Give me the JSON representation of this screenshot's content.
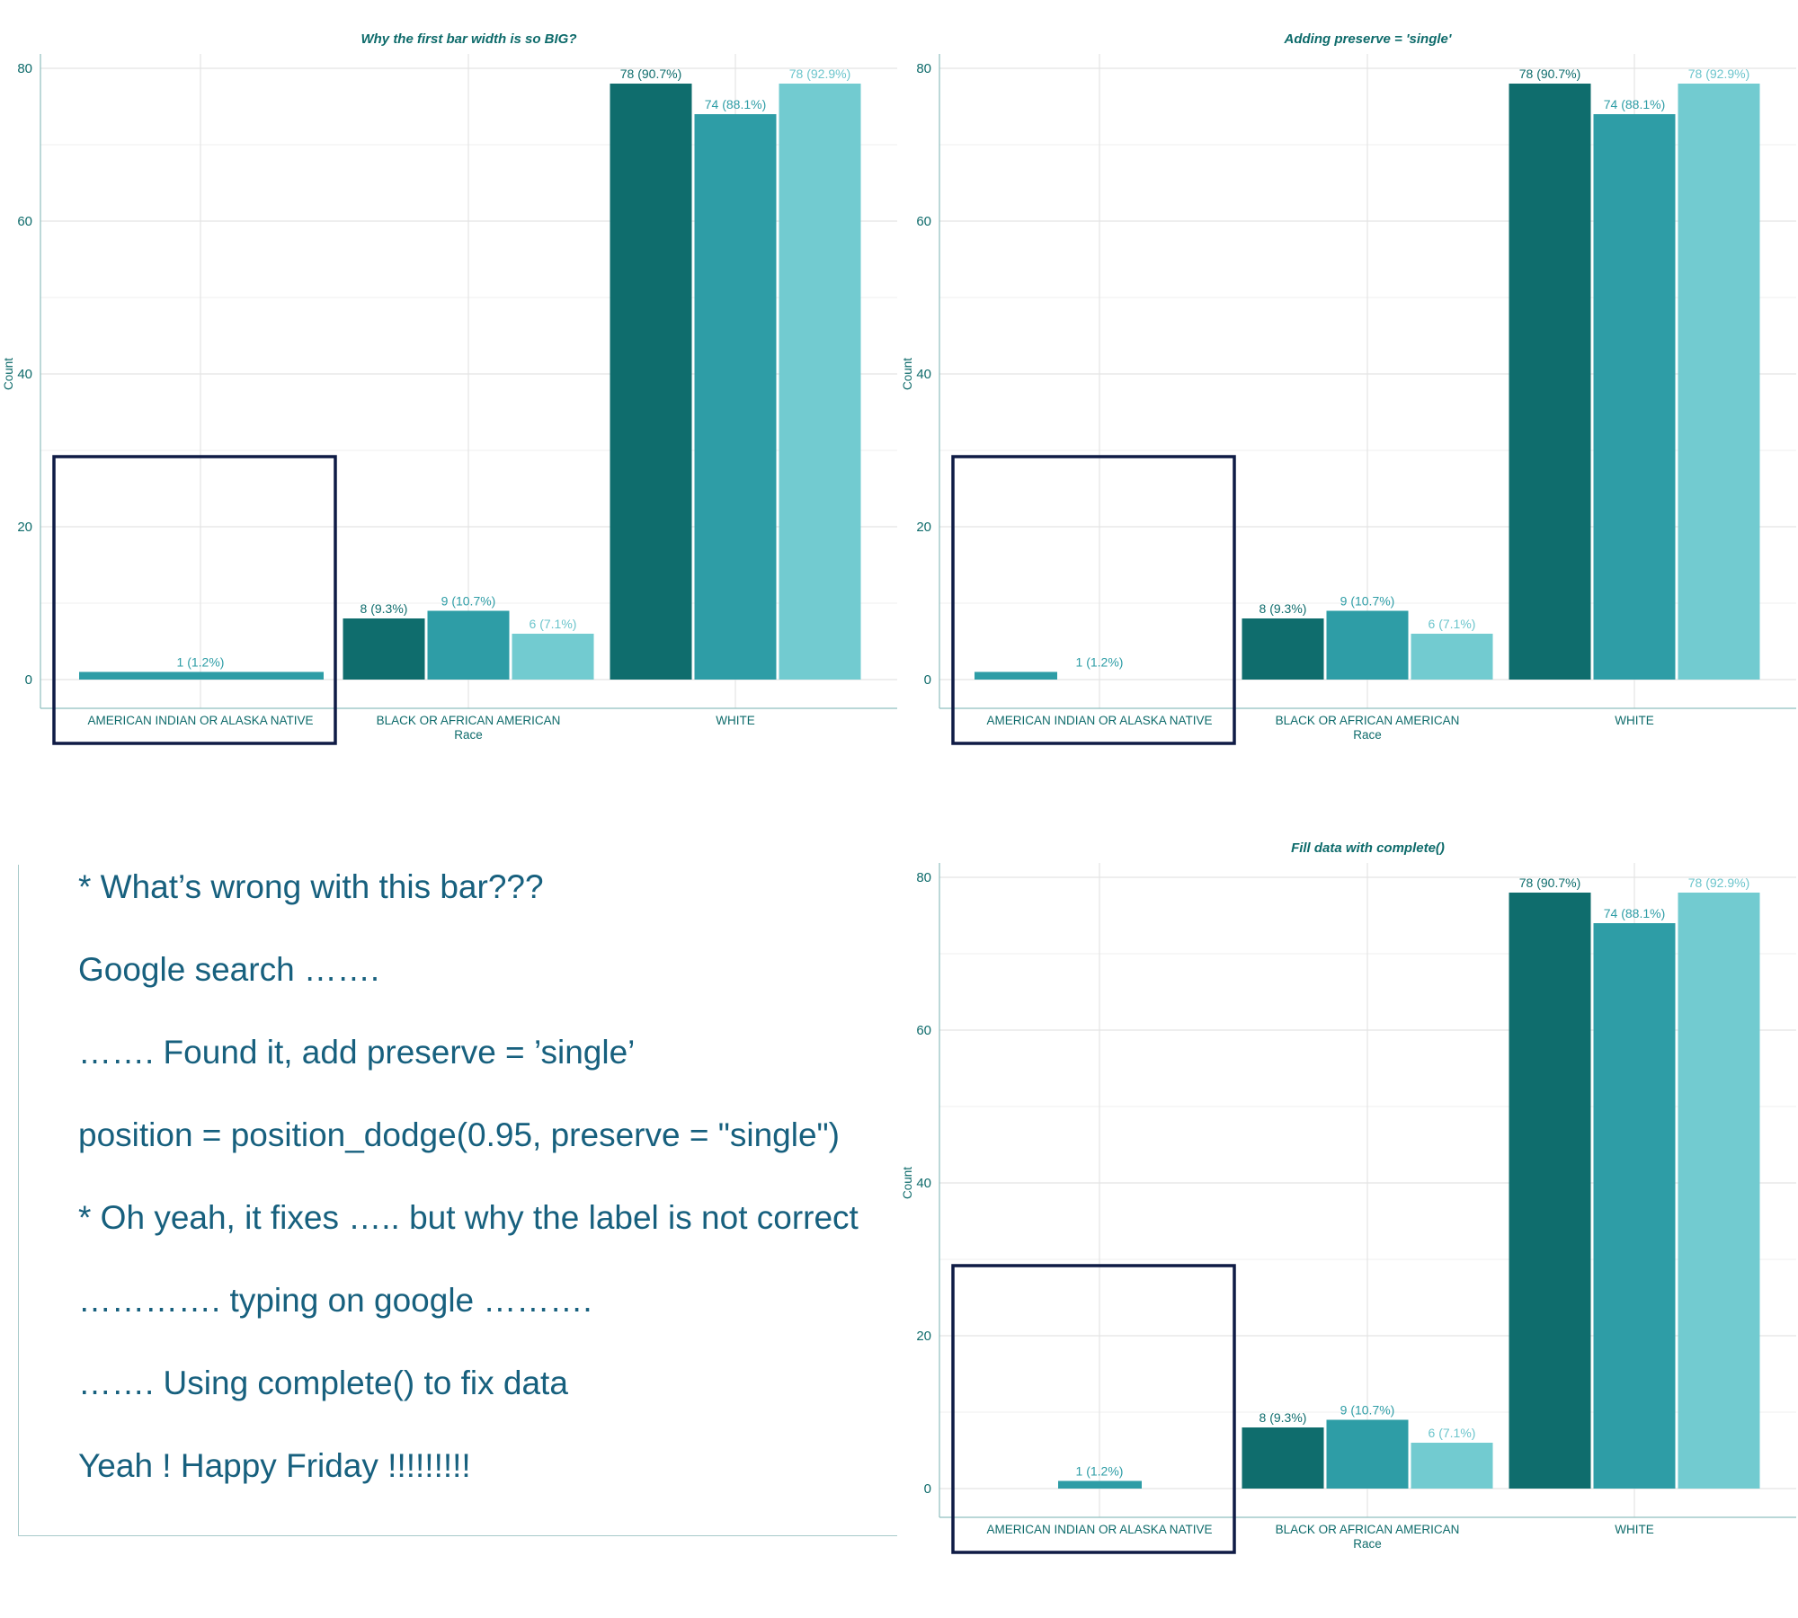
{
  "colors": {
    "series": [
      "#0f6d6d",
      "#2e9da6",
      "#72cbd0"
    ],
    "labels": [
      "#0f6d6d",
      "#2e9da6",
      "#6cc5cc"
    ],
    "highlight_box": "#0f1b45",
    "text": "#0e6b6b",
    "notes_text": "#17607e"
  },
  "chart_data": [
    {
      "type": "bar",
      "title": "Why the first bar width is so BIG?",
      "xlabel": "Race",
      "ylabel": "Count",
      "ylim": [
        0,
        80
      ],
      "yticks": [
        "0",
        "20",
        "40",
        "60",
        "80"
      ],
      "grid": true,
      "categories": [
        "AMERICAN INDIAN OR ALASKA NATIVE",
        "BLACK OR AFRICAN AMERICAN",
        "WHITE"
      ],
      "groups": [
        {
          "category": "AMERICAN INDIAN OR ALASKA NATIVE",
          "bars": [
            {
              "series": 1,
              "value": 1,
              "label": "1 (1.2%)"
            }
          ]
        },
        {
          "category": "BLACK OR AFRICAN AMERICAN",
          "bars": [
            {
              "series": 0,
              "value": 8,
              "label": "8 (9.3%)"
            },
            {
              "series": 1,
              "value": 9,
              "label": "9 (10.7%)"
            },
            {
              "series": 2,
              "value": 6,
              "label": "6 (7.1%)"
            }
          ]
        },
        {
          "category": "WHITE",
          "bars": [
            {
              "series": 0,
              "value": 78,
              "label": "78 (90.7%)"
            },
            {
              "series": 1,
              "value": 74,
              "label": "74 (88.1%)"
            },
            {
              "series": 2,
              "value": 78,
              "label": "78 (92.9%)"
            }
          ]
        }
      ],
      "highlighted_category": "AMERICAN INDIAN OR ALASKA NATIVE"
    },
    {
      "type": "bar",
      "title": "Adding preserve = 'single'",
      "xlabel": "Race",
      "ylabel": "Count",
      "ylim": [
        0,
        80
      ],
      "yticks": [
        "0",
        "20",
        "40",
        "60",
        "80"
      ],
      "grid": true,
      "categories": [
        "AMERICAN INDIAN OR ALASKA NATIVE",
        "BLACK OR AFRICAN AMERICAN",
        "WHITE"
      ],
      "groups": [
        {
          "category": "AMERICAN INDIAN OR ALASKA NATIVE",
          "bars": [
            {
              "series": 1,
              "value": 1,
              "label": "1 (1.2%)"
            }
          ]
        },
        {
          "category": "BLACK OR AFRICAN AMERICAN",
          "bars": [
            {
              "series": 0,
              "value": 8,
              "label": "8 (9.3%)"
            },
            {
              "series": 1,
              "value": 9,
              "label": "9 (10.7%)"
            },
            {
              "series": 2,
              "value": 6,
              "label": "6 (7.1%)"
            }
          ]
        },
        {
          "category": "WHITE",
          "bars": [
            {
              "series": 0,
              "value": 78,
              "label": "78 (90.7%)"
            },
            {
              "series": 1,
              "value": 74,
              "label": "74 (88.1%)"
            },
            {
              "series": 2,
              "value": 78,
              "label": "78 (92.9%)"
            }
          ]
        }
      ],
      "highlighted_category": "AMERICAN INDIAN OR ALASKA NATIVE"
    },
    {
      "type": "bar",
      "title": "Fill data with complete()",
      "xlabel": "Race",
      "ylabel": "Count",
      "ylim": [
        0,
        80
      ],
      "yticks": [
        "0",
        "20",
        "40",
        "60",
        "80"
      ],
      "grid": true,
      "categories": [
        "AMERICAN INDIAN OR ALASKA NATIVE",
        "BLACK OR AFRICAN AMERICAN",
        "WHITE"
      ],
      "groups": [
        {
          "category": "AMERICAN INDIAN OR ALASKA NATIVE",
          "bars": [
            {
              "series": 1,
              "value": 1,
              "label": "1 (1.2%)"
            }
          ]
        },
        {
          "category": "BLACK OR AFRICAN AMERICAN",
          "bars": [
            {
              "series": 0,
              "value": 8,
              "label": "8 (9.3%)"
            },
            {
              "series": 1,
              "value": 9,
              "label": "9 (10.7%)"
            },
            {
              "series": 2,
              "value": 6,
              "label": "6 (7.1%)"
            }
          ]
        },
        {
          "category": "WHITE",
          "bars": [
            {
              "series": 0,
              "value": 78,
              "label": "78 (90.7%)"
            },
            {
              "series": 1,
              "value": 74,
              "label": "74 (88.1%)"
            },
            {
              "series": 2,
              "value": 78,
              "label": "78 (92.9%)"
            }
          ]
        }
      ],
      "highlighted_category": "AMERICAN INDIAN OR ALASKA NATIVE"
    }
  ],
  "notes": [
    "*  What’s wrong with this bar???",
    "Google search …….",
    "……. Found it, add preserve = ’single’",
    "position = position_dodge(0.95, preserve = \"single\")",
    "* Oh yeah, it fixes ….. but why the label is not correct",
    "………….  typing on google ……….",
    "……. Using complete() to fix data",
    "Yeah ! Happy Friday !!!!!!!!!"
  ]
}
